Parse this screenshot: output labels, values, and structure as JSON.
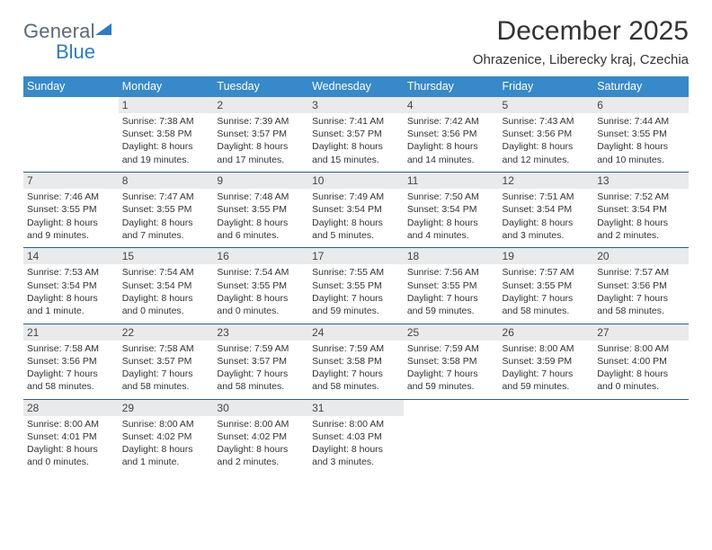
{
  "brand": {
    "name1": "General",
    "name2": "Blue"
  },
  "title": "December 2025",
  "subtitle": "Ohrazenice, Liberecky kraj, Czechia",
  "colors": {
    "header_bg": "#3789c9",
    "header_text": "#ffffff",
    "daynum_bg": "#e9eaeb",
    "text": "#333333",
    "rule": "#2b5f91",
    "logo_gray": "#5a6a78",
    "logo_blue": "#2f7bbf"
  },
  "days_of_week": [
    "Sunday",
    "Monday",
    "Tuesday",
    "Wednesday",
    "Thursday",
    "Friday",
    "Saturday"
  ],
  "weeks": [
    [
      null,
      {
        "n": "1",
        "sr": "7:38 AM",
        "ss": "3:58 PM",
        "dl": "8 hours and 19 minutes."
      },
      {
        "n": "2",
        "sr": "7:39 AM",
        "ss": "3:57 PM",
        "dl": "8 hours and 17 minutes."
      },
      {
        "n": "3",
        "sr": "7:41 AM",
        "ss": "3:57 PM",
        "dl": "8 hours and 15 minutes."
      },
      {
        "n": "4",
        "sr": "7:42 AM",
        "ss": "3:56 PM",
        "dl": "8 hours and 14 minutes."
      },
      {
        "n": "5",
        "sr": "7:43 AM",
        "ss": "3:56 PM",
        "dl": "8 hours and 12 minutes."
      },
      {
        "n": "6",
        "sr": "7:44 AM",
        "ss": "3:55 PM",
        "dl": "8 hours and 10 minutes."
      }
    ],
    [
      {
        "n": "7",
        "sr": "7:46 AM",
        "ss": "3:55 PM",
        "dl": "8 hours and 9 minutes."
      },
      {
        "n": "8",
        "sr": "7:47 AM",
        "ss": "3:55 PM",
        "dl": "8 hours and 7 minutes."
      },
      {
        "n": "9",
        "sr": "7:48 AM",
        "ss": "3:55 PM",
        "dl": "8 hours and 6 minutes."
      },
      {
        "n": "10",
        "sr": "7:49 AM",
        "ss": "3:54 PM",
        "dl": "8 hours and 5 minutes."
      },
      {
        "n": "11",
        "sr": "7:50 AM",
        "ss": "3:54 PM",
        "dl": "8 hours and 4 minutes."
      },
      {
        "n": "12",
        "sr": "7:51 AM",
        "ss": "3:54 PM",
        "dl": "8 hours and 3 minutes."
      },
      {
        "n": "13",
        "sr": "7:52 AM",
        "ss": "3:54 PM",
        "dl": "8 hours and 2 minutes."
      }
    ],
    [
      {
        "n": "14",
        "sr": "7:53 AM",
        "ss": "3:54 PM",
        "dl": "8 hours and 1 minute."
      },
      {
        "n": "15",
        "sr": "7:54 AM",
        "ss": "3:54 PM",
        "dl": "8 hours and 0 minutes."
      },
      {
        "n": "16",
        "sr": "7:54 AM",
        "ss": "3:55 PM",
        "dl": "8 hours and 0 minutes."
      },
      {
        "n": "17",
        "sr": "7:55 AM",
        "ss": "3:55 PM",
        "dl": "7 hours and 59 minutes."
      },
      {
        "n": "18",
        "sr": "7:56 AM",
        "ss": "3:55 PM",
        "dl": "7 hours and 59 minutes."
      },
      {
        "n": "19",
        "sr": "7:57 AM",
        "ss": "3:55 PM",
        "dl": "7 hours and 58 minutes."
      },
      {
        "n": "20",
        "sr": "7:57 AM",
        "ss": "3:56 PM",
        "dl": "7 hours and 58 minutes."
      }
    ],
    [
      {
        "n": "21",
        "sr": "7:58 AM",
        "ss": "3:56 PM",
        "dl": "7 hours and 58 minutes."
      },
      {
        "n": "22",
        "sr": "7:58 AM",
        "ss": "3:57 PM",
        "dl": "7 hours and 58 minutes."
      },
      {
        "n": "23",
        "sr": "7:59 AM",
        "ss": "3:57 PM",
        "dl": "7 hours and 58 minutes."
      },
      {
        "n": "24",
        "sr": "7:59 AM",
        "ss": "3:58 PM",
        "dl": "7 hours and 58 minutes."
      },
      {
        "n": "25",
        "sr": "7:59 AM",
        "ss": "3:58 PM",
        "dl": "7 hours and 59 minutes."
      },
      {
        "n": "26",
        "sr": "8:00 AM",
        "ss": "3:59 PM",
        "dl": "7 hours and 59 minutes."
      },
      {
        "n": "27",
        "sr": "8:00 AM",
        "ss": "4:00 PM",
        "dl": "8 hours and 0 minutes."
      }
    ],
    [
      {
        "n": "28",
        "sr": "8:00 AM",
        "ss": "4:01 PM",
        "dl": "8 hours and 0 minutes."
      },
      {
        "n": "29",
        "sr": "8:00 AM",
        "ss": "4:02 PM",
        "dl": "8 hours and 1 minute."
      },
      {
        "n": "30",
        "sr": "8:00 AM",
        "ss": "4:02 PM",
        "dl": "8 hours and 2 minutes."
      },
      {
        "n": "31",
        "sr": "8:00 AM",
        "ss": "4:03 PM",
        "dl": "8 hours and 3 minutes."
      },
      null,
      null,
      null
    ]
  ],
  "labels": {
    "sunrise": "Sunrise:",
    "sunset": "Sunset:",
    "daylight": "Daylight:"
  }
}
